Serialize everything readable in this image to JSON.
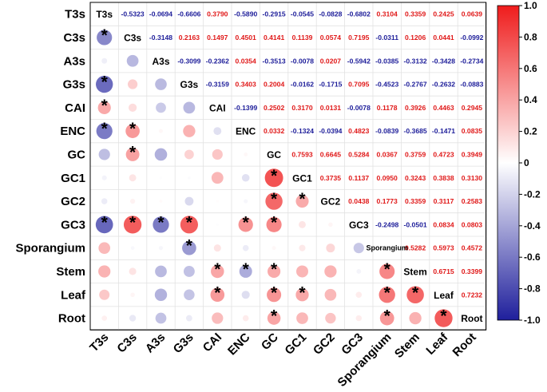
{
  "chart_data": {
    "type": "heatmap",
    "title": "",
    "variables": [
      "T3s",
      "C3s",
      "A3s",
      "G3s",
      "CAI",
      "ENC",
      "GC",
      "GC1",
      "GC2",
      "GC3",
      "Sporangium",
      "Stem",
      "Leaf",
      "Root"
    ],
    "upper_values": [
      [
        "-0.5323",
        "-0.0694",
        "-0.6606",
        "0.3790",
        "-0.5890",
        "-0.2915",
        "-0.0545",
        "-0.0828",
        "-0.6802",
        "0.3104",
        "0.3359",
        "0.2425",
        "0.0639"
      ],
      [
        "-0.3148",
        "0.2163",
        "0.1497",
        "0.4501",
        "0.4141",
        "0.1139",
        "0.0574",
        "0.7195",
        "-0.0311",
        "0.1206",
        "0.0441",
        "-0.0992"
      ],
      [
        "-0.3099",
        "-0.2362",
        "0.0354",
        "-0.3513",
        "-0.0078",
        "0.0207",
        "-0.5942",
        "-0.0385",
        "-0.3132",
        "-0.3428",
        "-0.2734"
      ],
      [
        "-0.3159",
        "0.3403",
        "0.2004",
        "-0.0162",
        "-0.1715",
        "0.7095",
        "-0.4523",
        "-0.2767",
        "-0.2632",
        "-0.0883"
      ],
      [
        "-0.1399",
        "0.2502",
        "0.3170",
        "0.0131",
        "-0.0078",
        "0.1178",
        "0.3926",
        "0.4463",
        "0.2945"
      ],
      [
        "0.0332",
        "-0.1324",
        "-0.0394",
        "0.4823",
        "-0.0839",
        "-0.3685",
        "-0.1471",
        "0.0835"
      ],
      [
        "0.7593",
        "0.6645",
        "0.5284",
        "0.0367",
        "0.3759",
        "0.4723",
        "0.3949"
      ],
      [
        "0.3735",
        "0.1137",
        "0.0950",
        "0.3243",
        "0.3838",
        "0.3130"
      ],
      [
        "0.0438",
        "0.1773",
        "0.3359",
        "0.3117",
        "0.2583"
      ],
      [
        "-0.2498",
        "-0.0501",
        "0.0834",
        "0.0803"
      ],
      [
        "0.5282",
        "0.5973",
        "0.4572"
      ],
      [
        "0.6715",
        "0.3399"
      ],
      [
        "0.7232"
      ]
    ],
    "lower_values": [
      [
        -0.5323
      ],
      [
        -0.0694,
        -0.3148
      ],
      [
        -0.6606,
        0.2163,
        -0.3099
      ],
      [
        0.379,
        0.1497,
        -0.2362,
        -0.3159
      ],
      [
        -0.589,
        0.4501,
        0.0354,
        0.3403,
        -0.1399
      ],
      [
        -0.2915,
        0.4141,
        -0.3513,
        0.2004,
        0.2502,
        0.0332
      ],
      [
        -0.0545,
        0.1139,
        -0.0078,
        -0.0162,
        0.317,
        -0.1324,
        0.7593
      ],
      [
        -0.0828,
        0.0574,
        0.0207,
        -0.1715,
        0.0131,
        -0.0394,
        0.6645,
        0.3735
      ],
      [
        -0.6802,
        0.7195,
        -0.5942,
        0.7095,
        -0.0078,
        0.4823,
        0.5284,
        0.1137,
        0.0438
      ],
      [
        0.3104,
        -0.0311,
        -0.0385,
        -0.4523,
        0.1178,
        -0.0839,
        0.0367,
        0.095,
        0.1773,
        -0.2498
      ],
      [
        0.3359,
        0.1206,
        -0.3132,
        -0.2767,
        0.3926,
        -0.3685,
        0.3759,
        0.3243,
        0.3359,
        -0.0501,
        0.5282
      ],
      [
        0.2425,
        0.0441,
        -0.3428,
        -0.2632,
        0.4463,
        -0.1471,
        0.4723,
        0.3838,
        0.3117,
        0.0834,
        0.5973,
        0.6715
      ],
      [
        0.0639,
        -0.0992,
        -0.2734,
        -0.0883,
        0.2945,
        0.0835,
        0.3949,
        0.313,
        0.2583,
        0.0803,
        0.4572,
        0.3399,
        0.7232
      ]
    ],
    "significant_lower": [
      [
        1
      ],
      [
        0,
        0
      ],
      [
        1,
        0,
        0
      ],
      [
        1,
        0,
        0,
        0
      ],
      [
        1,
        1,
        0,
        0,
        0
      ],
      [
        0,
        1,
        0,
        0,
        0,
        0
      ],
      [
        0,
        0,
        0,
        0,
        0,
        0,
        1
      ],
      [
        0,
        0,
        0,
        0,
        0,
        0,
        1,
        1
      ],
      [
        1,
        1,
        1,
        1,
        0,
        1,
        1,
        0,
        0
      ],
      [
        0,
        0,
        0,
        1,
        0,
        0,
        0,
        0,
        0,
        0
      ],
      [
        0,
        0,
        0,
        0,
        1,
        1,
        1,
        0,
        0,
        0,
        1
      ],
      [
        0,
        0,
        0,
        0,
        1,
        0,
        1,
        1,
        0,
        0,
        1,
        1
      ],
      [
        0,
        0,
        0,
        0,
        0,
        0,
        1,
        0,
        0,
        0,
        1,
        0,
        1
      ]
    ],
    "color_scale": {
      "min": -1.0,
      "max": 1.0,
      "ticks": [
        "1.0",
        "0.8",
        "0.6",
        "0.4",
        "0.2",
        "0",
        "-0.2",
        "-0.4",
        "-0.6",
        "-0.8",
        "-1.0"
      ],
      "negative_color": "#1f1f9c",
      "neutral_color": "#ffffff",
      "positive_color": "#ef1c1c"
    },
    "significance_marker": "*"
  }
}
